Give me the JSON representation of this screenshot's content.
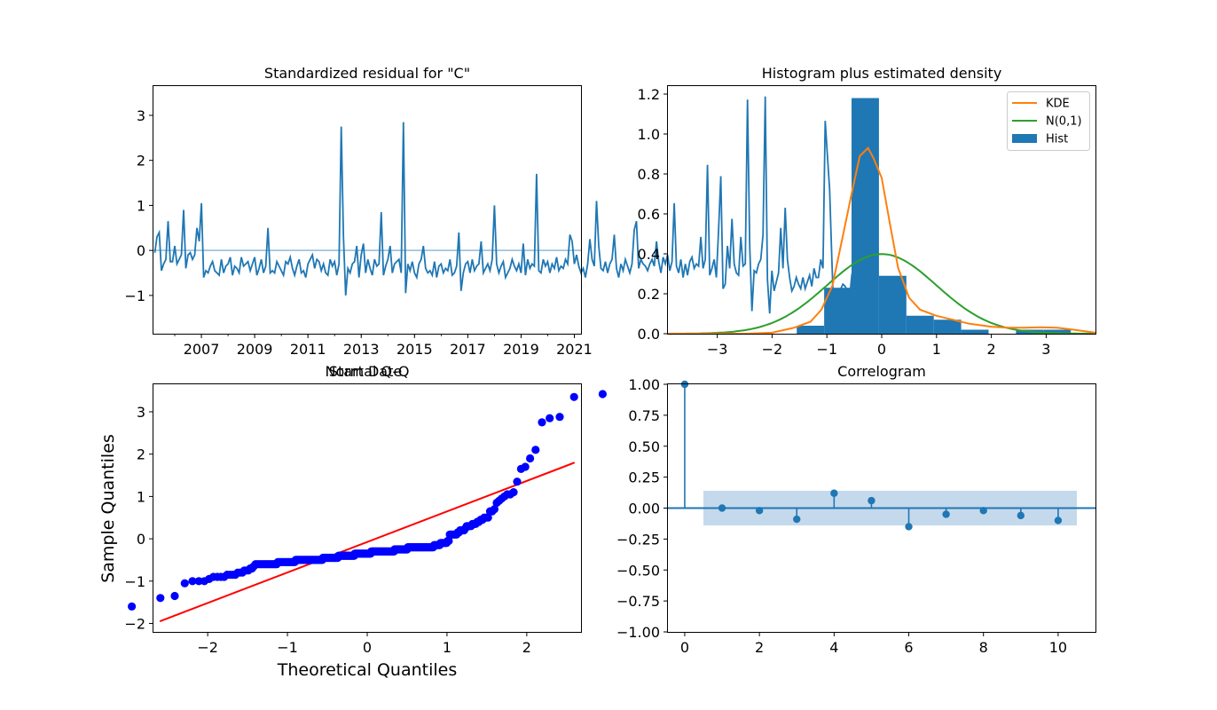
{
  "chart_data": [
    {
      "type": "line",
      "title": "Standardized residual for \"C\"",
      "xlabel": "",
      "ylabel": "",
      "xlim": [
        2005.2,
        2021.25
      ],
      "ylim": [
        -1.85,
        3.65
      ],
      "xticks": [
        2007,
        2009,
        2011,
        2013,
        2015,
        2017,
        2019,
        2021
      ],
      "yticks": [
        -1,
        0,
        1,
        2,
        3
      ],
      "hline": 0,
      "series": [
        {
          "x_start": 2005.25,
          "x_step": 0.08333,
          "values": [
            -0.05,
            0.3,
            0.4,
            -0.45,
            -0.3,
            -0.2,
            0.65,
            -0.25,
            -0.25,
            0.1,
            -0.3,
            -0.2,
            -0.1,
            0.9,
            -0.4,
            -0.1,
            -0.05,
            -0.2,
            -0.1,
            0.5,
            0.2,
            1.05,
            -0.6,
            -0.45,
            -0.5,
            -0.35,
            -0.25,
            -0.45,
            -0.5,
            -0.55,
            -0.2,
            -0.5,
            -0.35,
            -0.3,
            -0.15,
            -0.55,
            -0.35,
            -0.4,
            -0.5,
            -0.15,
            -0.35,
            -0.3,
            -0.25,
            -0.45,
            -0.3,
            -0.15,
            -0.55,
            -0.4,
            -0.2,
            -0.5,
            -0.35,
            0.5,
            -0.5,
            -0.45,
            -0.5,
            -0.25,
            -0.35,
            -0.45,
            -0.55,
            -0.25,
            -0.3,
            -0.15,
            -0.4,
            -0.55,
            -0.35,
            -0.2,
            -0.5,
            -0.45,
            -0.6,
            -0.3,
            -0.2,
            -0.1,
            -0.4,
            -0.2,
            -0.25,
            -0.45,
            -0.3,
            -0.5,
            -0.55,
            -0.2,
            -0.35,
            -0.25,
            -0.55,
            -0.3,
            2.75,
            0.3,
            -1.0,
            -0.4,
            -0.5,
            -0.3,
            -0.25,
            0.1,
            -0.6,
            -0.1,
            0.15,
            -0.5,
            -0.2,
            -0.4,
            -0.55,
            -0.2,
            -0.35,
            -0.3,
            0.85,
            -0.55,
            -0.35,
            -0.2,
            0.1,
            -0.5,
            -0.3,
            -0.25,
            -0.2,
            -0.5,
            2.85,
            -0.95,
            -0.3,
            -0.45,
            -0.25,
            -0.5,
            -0.6,
            -0.3,
            -0.2,
            0.1,
            -0.4,
            -0.5,
            -0.45,
            -0.55,
            -0.25,
            -0.6,
            -0.35,
            -0.3,
            -0.5,
            -0.4,
            -0.45,
            -0.2,
            -0.55,
            -0.5,
            -0.35,
            0.4,
            -0.9,
            -0.5,
            -0.3,
            -0.25,
            -0.5,
            -0.2,
            -0.45,
            -0.35,
            -0.3,
            0.2,
            -0.5,
            -0.4,
            -0.3,
            -0.45,
            -0.2,
            1.0,
            -0.3,
            -0.5,
            -0.35,
            -0.25,
            -0.6,
            -0.5,
            -0.4,
            -0.2,
            -0.35,
            -0.45,
            -0.3,
            -0.5,
            0.15,
            -0.55,
            -0.2,
            -0.4,
            -0.3,
            -0.35,
            1.7,
            -0.45,
            -0.5,
            -0.2,
            -0.35,
            -0.25,
            -0.5,
            -0.3,
            -0.4,
            -0.15,
            -0.45,
            -0.35,
            -0.4,
            -0.2,
            -0.3,
            0.35,
            0.2,
            -0.3,
            -0.1,
            -0.35,
            -0.5,
            -0.4,
            -0.6,
            -0.3,
            0.25,
            -0.2,
            -0.35,
            1.1,
            0.1,
            -0.4,
            -0.45,
            -0.25,
            -0.5,
            -0.3,
            -0.2,
            0.35,
            -0.4,
            -0.6,
            -0.3,
            -0.45,
            -0.2,
            -0.35,
            -0.5,
            -0.3,
            0.45,
            0.65,
            -0.4,
            -0.2,
            -0.3,
            -0.35,
            -0.45,
            -0.3,
            -0.2,
            -0.35,
            0.2,
            -0.25,
            -0.5,
            -0.15,
            -0.3,
            -0.1,
            -0.45,
            -0.25,
            1.05,
            -0.35,
            -0.5,
            -0.2,
            -0.6,
            -0.3,
            -0.55,
            -0.25,
            -0.15,
            -0.4,
            -0.3,
            -0.35,
            0.3,
            -0.4,
            -0.2,
            1.9,
            -0.55,
            -0.4,
            -0.2,
            -0.6,
            0.45,
            1.65,
            -0.85,
            -0.75,
            0.1,
            -0.4,
            0.7,
            -0.3,
            -0.5,
            -0.55,
            0.3,
            -0.35,
            -0.3,
            3.35,
            0.1,
            -1.35,
            -0.45,
            -0.5,
            -0.3,
            -0.2,
            0.35,
            3.42,
            -0.65,
            -1.4,
            -0.45,
            -0.9,
            -0.7,
            -0.5,
            0.5,
            -0.4,
            0.95,
            -0.2,
            -0.6,
            -0.9,
            -0.8,
            -0.6,
            -0.75,
            -0.85,
            -0.6,
            -0.85,
            -0.7,
            -0.55,
            -0.8,
            -0.4,
            -0.6,
            -0.6,
            -0.2,
            -0.4,
            2.88,
            2.1,
            1.35,
            -0.2,
            -1.6,
            -1.0,
            -1.0,
            -0.85,
            -0.75,
            -0.8,
            -0.9,
            -1.05,
            -0.55,
            -0.6
          ]
        }
      ],
      "color": "#1f77b4"
    },
    {
      "type": "bar",
      "title": "Histogram plus estimated density",
      "xlim": [
        -3.9,
        3.9
      ],
      "ylim": [
        0,
        1.24
      ],
      "xticks": [
        -3,
        -2,
        -1,
        0,
        1,
        2,
        3
      ],
      "yticks": [
        0.0,
        0.2,
        0.4,
        0.6,
        0.8,
        1.0,
        1.2
      ],
      "legend_position": "top-right",
      "legend": [
        "KDE",
        "N(0,1)",
        "Hist"
      ],
      "hist_bins": [
        {
          "x0": -1.55,
          "x1": -1.05,
          "value": 0.04
        },
        {
          "x0": -1.05,
          "x1": -0.55,
          "value": 0.23
        },
        {
          "x0": -0.55,
          "x1": -0.05,
          "value": 1.18
        },
        {
          "x0": -0.05,
          "x1": 0.45,
          "value": 0.29
        },
        {
          "x0": 0.45,
          "x1": 0.95,
          "value": 0.09
        },
        {
          "x0": 0.95,
          "x1": 1.45,
          "value": 0.07
        },
        {
          "x0": 1.45,
          "x1": 1.95,
          "value": 0.02
        },
        {
          "x0": 1.95,
          "x1": 2.45,
          "value": 0.0
        },
        {
          "x0": 2.45,
          "x1": 2.95,
          "value": 0.02
        },
        {
          "x0": 2.95,
          "x1": 3.45,
          "value": 0.02
        }
      ],
      "kde": {
        "x": [
          -3.9,
          -2.5,
          -2.0,
          -1.6,
          -1.3,
          -1.1,
          -0.9,
          -0.7,
          -0.55,
          -0.4,
          -0.25,
          -0.15,
          0.0,
          0.15,
          0.3,
          0.5,
          0.7,
          1.0,
          1.3,
          1.6,
          2.0,
          2.3,
          2.6,
          2.9,
          3.2,
          3.5,
          3.9
        ],
        "y": [
          0.0,
          0.0,
          0.005,
          0.03,
          0.06,
          0.12,
          0.24,
          0.5,
          0.7,
          0.89,
          0.93,
          0.88,
          0.78,
          0.55,
          0.33,
          0.18,
          0.12,
          0.09,
          0.07,
          0.05,
          0.035,
          0.03,
          0.03,
          0.032,
          0.03,
          0.02,
          0.005
        ]
      },
      "normal": {
        "mean": 0,
        "sd": 1
      },
      "colors": {
        "kde": "#ff7f0e",
        "normal": "#2ca02c",
        "hist": "#1f77b4"
      }
    },
    {
      "type": "scatter",
      "title": "Normal Q-Q",
      "overlapping_title": "Start Date",
      "xlabel": "Theoretical Quantiles",
      "ylabel": "Sample Quantiles",
      "xlim": [
        -2.68,
        2.68
      ],
      "ylim": [
        -2.2,
        3.65
      ],
      "xticks": [
        -2,
        -1,
        0,
        1,
        2
      ],
      "yticks": [
        -2,
        -1,
        0,
        1,
        2,
        3
      ],
      "reference_line": {
        "x": [
          -2.6,
          2.6
        ],
        "y": [
          -1.95,
          1.8
        ]
      },
      "colors": {
        "points": "#0000ff",
        "line": "#ff0000"
      }
    },
    {
      "type": "bar",
      "title": "Correlogram",
      "xlim": [
        -0.45,
        11.0
      ],
      "ylim": [
        -1.0,
        1.0
      ],
      "xticks": [
        0,
        2,
        4,
        6,
        8,
        10
      ],
      "yticks": [
        -1.0,
        -0.75,
        -0.5,
        -0.25,
        0.0,
        0.25,
        0.5,
        0.75,
        1.0
      ],
      "lags": [
        0,
        1,
        2,
        3,
        4,
        5,
        6,
        7,
        8,
        9,
        10
      ],
      "values": [
        1.0,
        0.0,
        -0.02,
        -0.09,
        0.12,
        0.06,
        -0.15,
        -0.05,
        -0.02,
        -0.06,
        -0.1
      ],
      "confidence_band": {
        "x": [
          0.5,
          10.5
        ],
        "upper": 0.14,
        "lower": -0.14
      },
      "colors": {
        "stems": "#1f77b4",
        "band": "#c5d9ec"
      }
    }
  ]
}
